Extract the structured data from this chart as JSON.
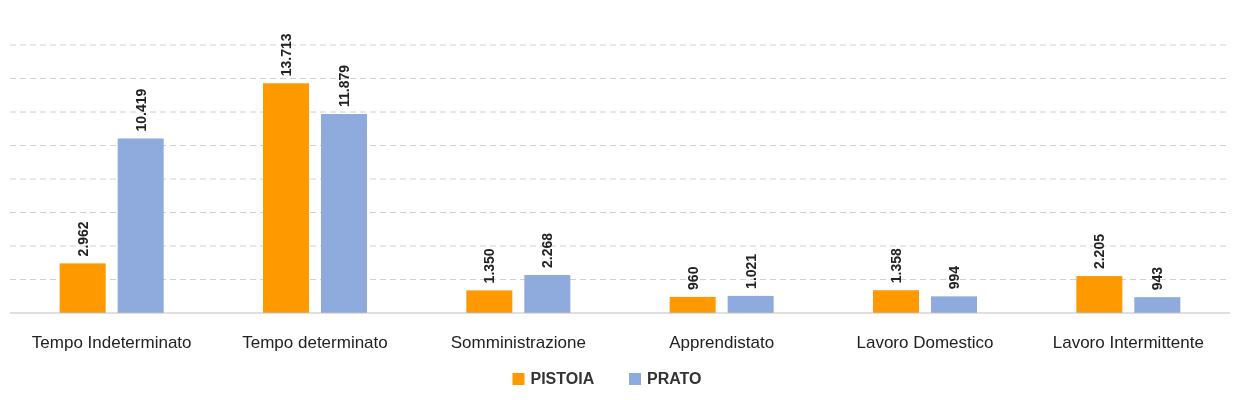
{
  "chart_data": {
    "type": "bar",
    "categories": [
      "Tempo Indeterminato",
      "Tempo determinato",
      "Somministrazione",
      "Apprendistato",
      "Lavoro Domestico",
      "Lavoro Intermittente"
    ],
    "series": [
      {
        "name": "PISTOIA",
        "color": "#ff9900",
        "values": [
          2962,
          13713,
          1350,
          960,
          1358,
          2205
        ],
        "value_labels": [
          "2.962",
          "13.713",
          "1.350",
          "960",
          "1.358",
          "2.205"
        ]
      },
      {
        "name": "PRATO",
        "color": "#8faadc",
        "values": [
          10419,
          11879,
          2268,
          1021,
          994,
          943
        ],
        "value_labels": [
          "10.419",
          "11.879",
          "2.268",
          "1.021",
          "994",
          "943"
        ]
      }
    ],
    "ylim": [
      0,
      16000
    ],
    "yticks": [
      {
        "value": 0,
        "label": null
      },
      {
        "value": 2000,
        "label": null
      },
      {
        "value": 4000,
        "label": null
      },
      {
        "value": 6000,
        "label": null
      },
      {
        "value": 8000,
        "label": null
      },
      {
        "value": 10000,
        "label": null
      },
      {
        "value": 12000,
        "label": null
      },
      {
        "value": 14000,
        "label": null
      },
      {
        "value": 16000,
        "label": null
      }
    ],
    "grid": "y",
    "tick_labels": "x",
    "legend": "bottom"
  }
}
